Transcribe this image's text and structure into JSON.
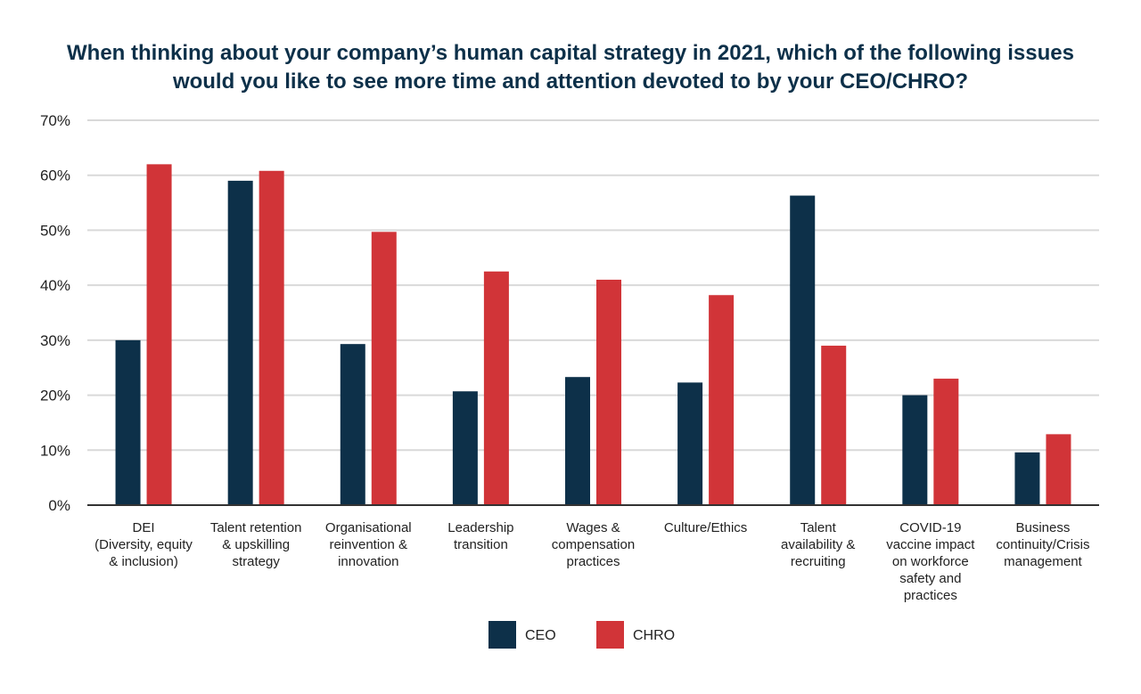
{
  "chart_data": {
    "type": "bar",
    "title_lines": [
      "When thinking about your company’s human capital strategy in 2021, which of the following issues",
      "would you like to see more time and attention devoted to by your CEO/CHRO?"
    ],
    "categories": [
      [
        "DEI",
        "(Diversity, equity",
        "& inclusion)"
      ],
      [
        "Talent retention",
        "& upskilling",
        "strategy"
      ],
      [
        "Organisational",
        "reinvention &",
        "innovation"
      ],
      [
        "Leadership",
        "transition"
      ],
      [
        "Wages &",
        "compensation",
        "practices"
      ],
      [
        "Culture/Ethics"
      ],
      [
        "Talent",
        "availability &",
        "recruiting"
      ],
      [
        "COVID-19",
        "vaccine impact",
        "on workforce",
        "safety and",
        "practices"
      ],
      [
        "Business",
        "continuity/Crisis",
        "management"
      ]
    ],
    "series": [
      {
        "name": "CEO",
        "color": "#0d3049",
        "values": [
          30,
          59,
          29.3,
          20.7,
          23.3,
          22.3,
          56.3,
          20,
          9.6
        ]
      },
      {
        "name": "CHRO",
        "color": "#d13438",
        "values": [
          62,
          60.8,
          49.7,
          42.5,
          41,
          38.2,
          29,
          23,
          12.9
        ]
      }
    ],
    "ylim": [
      0,
      70
    ],
    "yticks": [
      "0%",
      "10%",
      "20%",
      "30%",
      "40%",
      "50%",
      "60%",
      "70%"
    ],
    "grid": true,
    "legend_position": "bottom-center"
  }
}
